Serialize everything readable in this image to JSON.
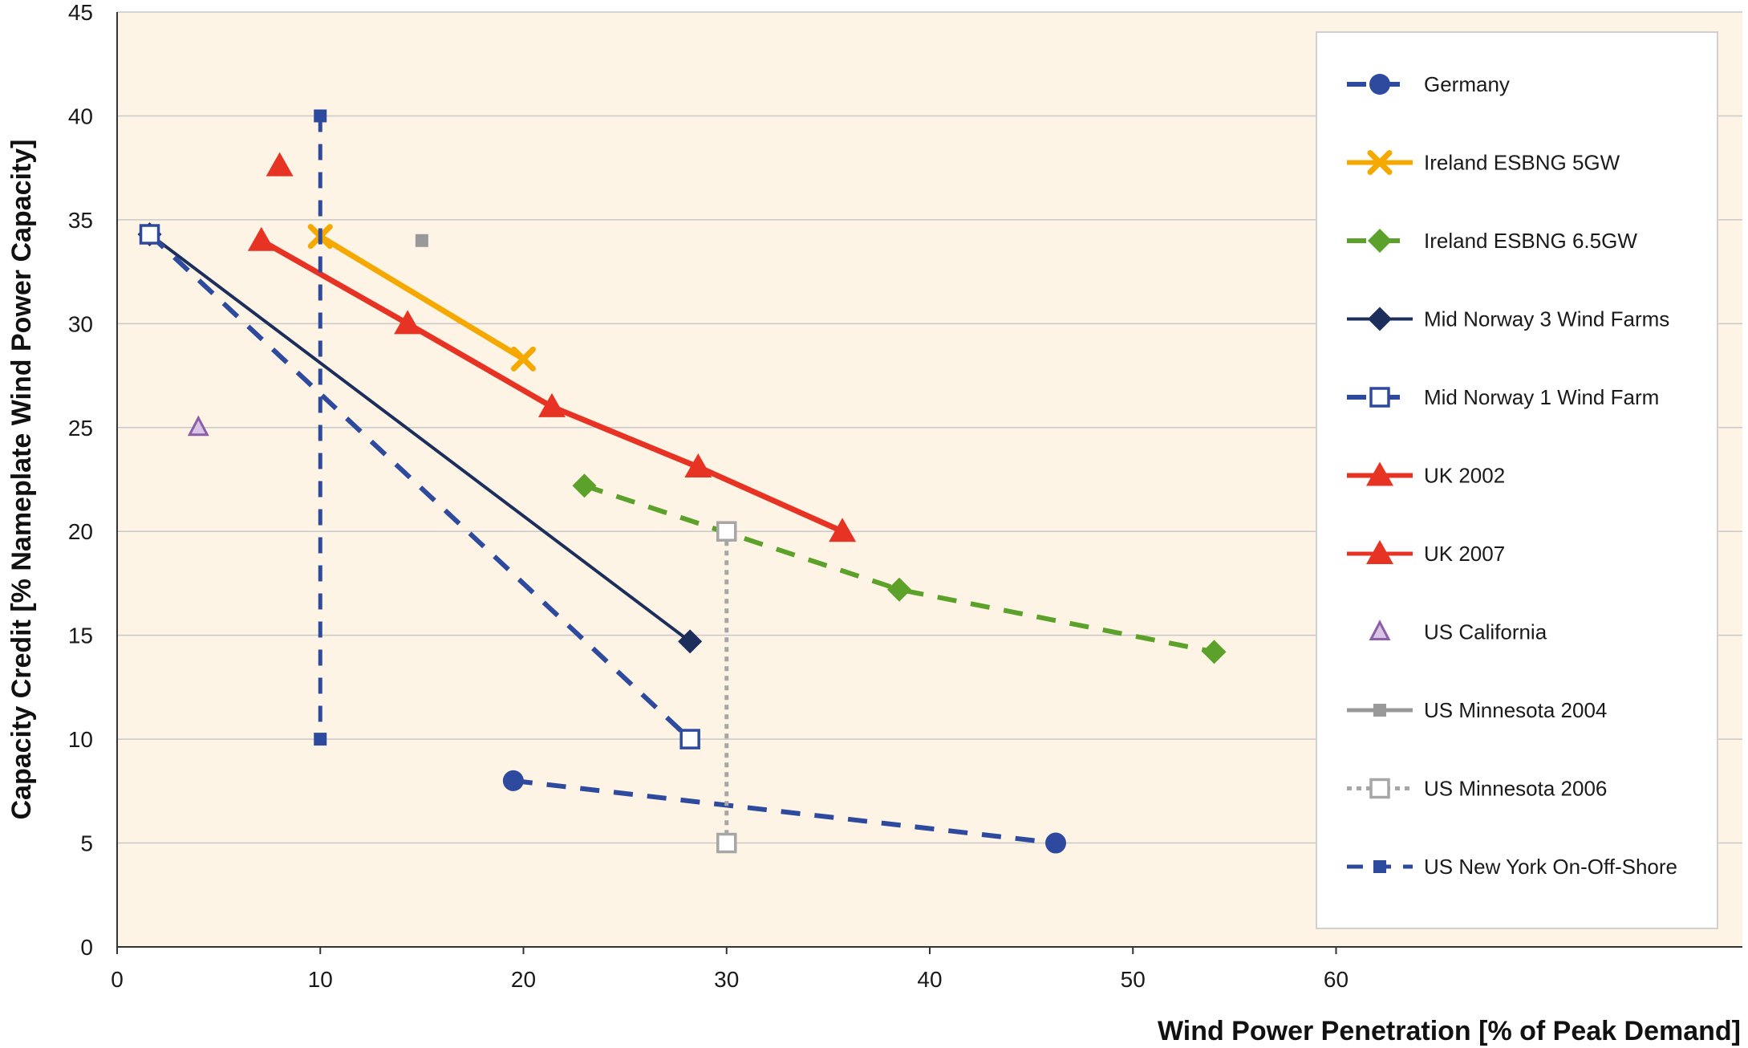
{
  "chart_data": {
    "type": "line",
    "title": "",
    "xlabel": "Wind Power Penetration [% of Peak Demand]",
    "ylabel": "Capacity Credit [% Nameplate Wind Power Capacity]",
    "xlim": [
      0,
      80
    ],
    "ylim": [
      0,
      45
    ],
    "x_ticks": [
      0,
      10,
      20,
      30,
      40,
      50,
      60
    ],
    "y_ticks": [
      0,
      5,
      10,
      15,
      20,
      25,
      30,
      35,
      40,
      45
    ],
    "grid": "horizontal",
    "legend_placement": "right",
    "plot_background": "#fdf4e6",
    "series": [
      {
        "name": "Germany",
        "color": "#2e4a9e",
        "line": "dashed",
        "marker": "circle",
        "points": [
          [
            19.5,
            8
          ],
          [
            46.2,
            5
          ]
        ]
      },
      {
        "name": "Ireland ESBNG 5GW",
        "color": "#f5a800",
        "line": "solid",
        "marker": "x",
        "points": [
          [
            10,
            34.2
          ],
          [
            20,
            28.3
          ]
        ]
      },
      {
        "name": "Ireland ESBNG 6.5GW",
        "color": "#5ba12a",
        "line": "dashed",
        "marker": "diamond",
        "points": [
          [
            23,
            22.2
          ],
          [
            38.5,
            17.2
          ],
          [
            54,
            14.2
          ]
        ]
      },
      {
        "name": "Mid Norway 3 Wind Farms",
        "color": "#1c2e5c",
        "line": "solid",
        "marker": "diamond",
        "points": [
          [
            1.6,
            34.3
          ],
          [
            28.2,
            14.7
          ]
        ]
      },
      {
        "name": "Mid Norway 1 Wind Farm",
        "color": "#2e4a9e",
        "line": "dashed",
        "marker": "open-square",
        "points": [
          [
            1.6,
            34.3
          ],
          [
            28.2,
            10
          ]
        ]
      },
      {
        "name": "UK 2002",
        "color": "#e63323",
        "line": "solid",
        "marker": "triangle",
        "points": [
          [
            7.1,
            34
          ],
          [
            14.3,
            30
          ],
          [
            21.4,
            26
          ],
          [
            28.6,
            23.1
          ],
          [
            35.7,
            20
          ]
        ]
      },
      {
        "name": "UK 2007",
        "color": "#e63323",
        "line": "solid",
        "marker": "triangle",
        "points": [
          [
            8,
            37.6
          ]
        ]
      },
      {
        "name": "US California",
        "color": "#8b5ea8",
        "line": "none",
        "marker": "open-triangle",
        "points": [
          [
            4,
            25
          ]
        ]
      },
      {
        "name": "US Minnesota 2004",
        "color": "#999999",
        "line": "solid",
        "marker": "square",
        "points": [
          [
            15,
            34
          ]
        ]
      },
      {
        "name": "US Minnesota 2006",
        "color": "#a6a6a6",
        "line": "dotted",
        "marker": "open-square",
        "points": [
          [
            30,
            20
          ],
          [
            30,
            5
          ]
        ]
      },
      {
        "name": "US New York On-Off-Shore",
        "color": "#2e4a9e",
        "line": "dashed",
        "marker": "small-square",
        "points": [
          [
            10,
            40
          ],
          [
            10,
            10
          ]
        ]
      }
    ]
  }
}
